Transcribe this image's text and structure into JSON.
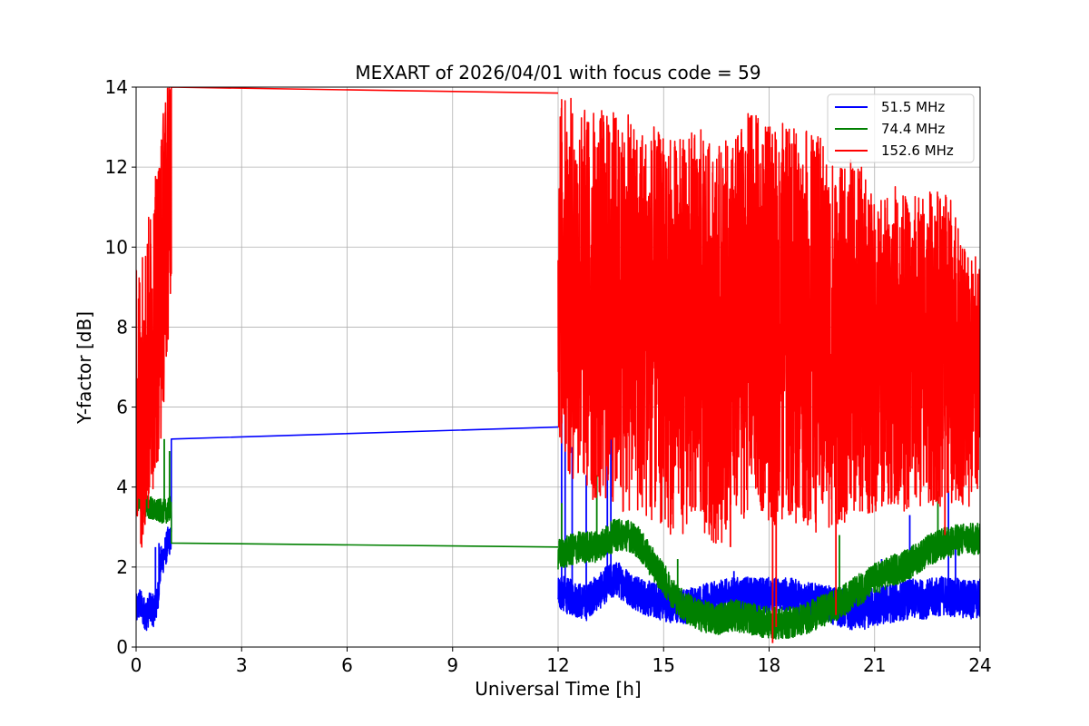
{
  "chart_data": {
    "type": "line",
    "title": "MEXART of 2026/04/01 with focus code = 59",
    "xlabel": "Universal Time [h]",
    "ylabel": "Y-factor [dB]",
    "xlim": [
      0,
      24
    ],
    "ylim": [
      0,
      14
    ],
    "xticks": [
      0,
      3,
      6,
      9,
      12,
      15,
      18,
      21,
      24
    ],
    "yticks": [
      0,
      2,
      4,
      6,
      8,
      10,
      12,
      14
    ],
    "xtick_labels": [
      "0",
      "3",
      "6",
      "9",
      "12",
      "15",
      "18",
      "21",
      "24"
    ],
    "ytick_labels": [
      "0",
      "2",
      "4",
      "6",
      "8",
      "10",
      "12",
      "14"
    ],
    "grid": true,
    "legend_position": "top-right",
    "series": [
      {
        "name": " 51.5 MHz",
        "color": "#0000ff",
        "gap": {
          "from": [
            1.0,
            5.2
          ],
          "to": [
            12.0,
            5.5
          ]
        },
        "x": [
          0,
          0.1,
          0.2,
          0.3,
          0.4,
          0.5,
          0.6,
          0.7,
          0.8,
          0.9,
          1.0,
          12.0,
          12.2,
          12.5,
          12.8,
          13.0,
          13.2,
          13.4,
          13.7,
          14.0,
          14.3,
          14.6,
          15.0,
          15.5,
          16.0,
          16.5,
          17.0,
          17.5,
          18.0,
          18.5,
          19.0,
          19.5,
          20.0,
          20.5,
          21.0,
          21.5,
          22.0,
          22.5,
          23.0,
          23.5,
          24.0
        ],
        "y": [
          0.9,
          1.1,
          0.9,
          0.8,
          1.0,
          0.9,
          1.1,
          2.1,
          2.3,
          2.6,
          2.7,
          1.4,
          1.3,
          1.2,
          1.1,
          1.3,
          1.4,
          1.6,
          1.7,
          1.5,
          1.3,
          1.2,
          1.1,
          1.0,
          1.1,
          1.2,
          1.3,
          1.3,
          1.3,
          1.3,
          1.2,
          1.1,
          1.0,
          0.9,
          1.0,
          1.1,
          1.2,
          1.2,
          1.3,
          1.2,
          1.2
        ],
        "band": [
          0.4,
          0.4,
          0.4,
          0.4,
          0.4,
          0.4,
          0.4,
          0.4,
          0.4,
          0.4,
          0.3,
          0.45,
          0.45,
          0.45,
          0.45,
          0.45,
          0.45,
          0.45,
          0.45,
          0.45,
          0.45,
          0.45,
          0.45,
          0.45,
          0.45,
          0.45,
          0.45,
          0.45,
          0.45,
          0.45,
          0.45,
          0.45,
          0.5,
          0.5,
          0.5,
          0.5,
          0.5,
          0.5,
          0.5,
          0.5,
          0.5
        ],
        "spikes": [
          [
            0.55,
            2.5
          ],
          [
            0.65,
            2.6
          ],
          [
            12.1,
            5.8
          ],
          [
            12.2,
            7.8
          ],
          [
            12.4,
            5.0
          ],
          [
            12.8,
            4.3
          ],
          [
            13.4,
            8.1
          ],
          [
            13.5,
            6.2
          ],
          [
            17.0,
            1.9
          ],
          [
            18.1,
            1.6
          ],
          [
            21.2,
            2.2
          ],
          [
            22.0,
            3.3
          ],
          [
            23.1,
            3.9
          ],
          [
            23.3,
            2.6
          ]
        ]
      },
      {
        "name": " 74.4 MHz",
        "color": "#008000",
        "gap": {
          "from": [
            1.0,
            2.6
          ],
          "to": [
            12.0,
            2.5
          ]
        },
        "x": [
          0,
          0.1,
          0.2,
          0.3,
          0.4,
          0.5,
          0.6,
          0.7,
          0.8,
          0.9,
          1.0,
          12.0,
          12.3,
          12.6,
          13.0,
          13.3,
          13.6,
          14.0,
          14.3,
          14.6,
          15.0,
          15.3,
          15.6,
          16.0,
          16.5,
          17.0,
          17.5,
          18.0,
          18.5,
          19.0,
          19.5,
          20.0,
          20.5,
          21.0,
          21.5,
          22.0,
          22.5,
          23.0,
          23.5,
          24.0
        ],
        "y": [
          3.7,
          3.7,
          3.6,
          3.5,
          3.5,
          3.4,
          3.4,
          3.4,
          3.4,
          3.4,
          3.5,
          2.3,
          2.4,
          2.5,
          2.5,
          2.6,
          2.8,
          2.8,
          2.6,
          2.2,
          1.7,
          1.3,
          1.0,
          0.8,
          0.7,
          0.8,
          0.7,
          0.6,
          0.6,
          0.7,
          0.9,
          1.1,
          1.4,
          1.7,
          1.9,
          2.1,
          2.4,
          2.6,
          2.7,
          2.7
        ],
        "band": [
          0.3,
          0.3,
          0.3,
          0.3,
          0.3,
          0.3,
          0.3,
          0.3,
          0.3,
          0.3,
          0.3,
          0.4,
          0.4,
          0.4,
          0.4,
          0.4,
          0.4,
          0.4,
          0.4,
          0.4,
          0.4,
          0.4,
          0.4,
          0.4,
          0.4,
          0.4,
          0.4,
          0.4,
          0.4,
          0.4,
          0.4,
          0.4,
          0.4,
          0.4,
          0.4,
          0.4,
          0.4,
          0.4,
          0.4,
          0.4
        ],
        "spikes": [
          [
            0.8,
            5.2
          ],
          [
            0.95,
            4.9
          ],
          [
            12.1,
            3.6
          ],
          [
            13.1,
            4.3
          ],
          [
            15.4,
            2.2
          ],
          [
            20.0,
            2.8
          ],
          [
            22.8,
            3.9
          ]
        ]
      },
      {
        "name": "152.6 MHz",
        "color": "#ff0000",
        "gap": {
          "from": [
            1.0,
            14.0
          ],
          "to": [
            12.0,
            13.85
          ]
        },
        "x": [
          0,
          0.1,
          0.2,
          0.3,
          0.4,
          0.5,
          0.6,
          0.7,
          0.8,
          0.9,
          1.0,
          12.0,
          12.3,
          12.6,
          13.0,
          13.5,
          14.0,
          14.5,
          15.0,
          15.5,
          16.0,
          16.5,
          17.0,
          17.5,
          18.0,
          18.5,
          19.0,
          19.5,
          20.0,
          20.5,
          21.0,
          21.5,
          22.0,
          22.5,
          23.0,
          23.5,
          24.0
        ],
        "y": [
          6.5,
          6.0,
          6.5,
          6.8,
          7.2,
          8.0,
          8.5,
          9.0,
          10.0,
          11.0,
          12.0,
          9.5,
          9.0,
          8.8,
          8.5,
          8.5,
          8.3,
          8.2,
          7.8,
          7.8,
          8.0,
          7.5,
          7.8,
          8.5,
          8.0,
          8.2,
          8.0,
          7.8,
          7.5,
          7.8,
          7.2,
          7.6,
          7.3,
          7.5,
          7.5,
          7.0,
          6.5
        ],
        "band": [
          3.5,
          3.8,
          3.8,
          3.8,
          3.8,
          4.0,
          4.0,
          4.0,
          3.8,
          3.5,
          3.0,
          4.5,
          4.8,
          4.8,
          5.0,
          5.0,
          5.0,
          5.0,
          5.0,
          5.0,
          5.0,
          5.0,
          5.0,
          5.0,
          5.0,
          5.0,
          5.0,
          5.0,
          4.5,
          4.5,
          4.0,
          4.0,
          4.0,
          4.0,
          4.0,
          3.5,
          3.0
        ],
        "spikes": [
          [
            18.1,
            0.1
          ],
          [
            18.2,
            0.5
          ],
          [
            19.9,
            0.8
          ],
          [
            16.9,
            2.5
          ],
          [
            23.0,
            2.8
          ]
        ]
      }
    ]
  }
}
